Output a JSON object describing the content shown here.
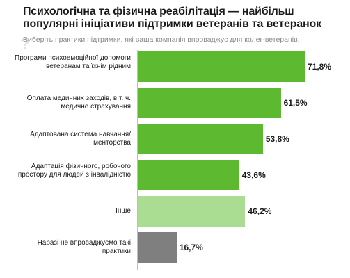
{
  "title": "Психологічна та фізична реабілітація — найбільш популярні ініціативи підтримки ветеранів та ветеранок",
  "subtitle": "Виберіть практики підтримки, які ваша компанія впроваджує для колег-ветеранів.",
  "icons": {
    "question": "question-mark-icon"
  },
  "colors": {
    "green": "#5cb930",
    "light_green": "#aadc92",
    "gray": "#7f7f7f"
  },
  "chart_data": {
    "type": "bar",
    "orientation": "horizontal",
    "categories": [
      "Програми психоемоційної допомоги ветеранам та їхнім рідним",
      "Оплата медичних заходів, в т. ч. медичне страхування",
      "Адаптована система навчання/менторства",
      "Адаптація фізичного, робочого простору для людей з інвалідністю",
      "Інше",
      "Наразі не впроваджуємо такі практики"
    ],
    "values": [
      71.8,
      61.5,
      53.8,
      43.6,
      46.2,
      16.7
    ],
    "value_labels": [
      "71,8%",
      "61,5%",
      "53,8%",
      "43,6%",
      "46,2%",
      "16,7%"
    ],
    "bar_colors": [
      "#5cb930",
      "#5cb930",
      "#5cb930",
      "#5cb930",
      "#aadc92",
      "#7f7f7f"
    ],
    "xlim": [
      0,
      100
    ],
    "title": "Психологічна та фізична реабілітація — найбільш популярні ініціативи підтримки ветеранів та ветеранок",
    "xlabel": "",
    "ylabel": "",
    "grid": false,
    "legend": "none"
  }
}
